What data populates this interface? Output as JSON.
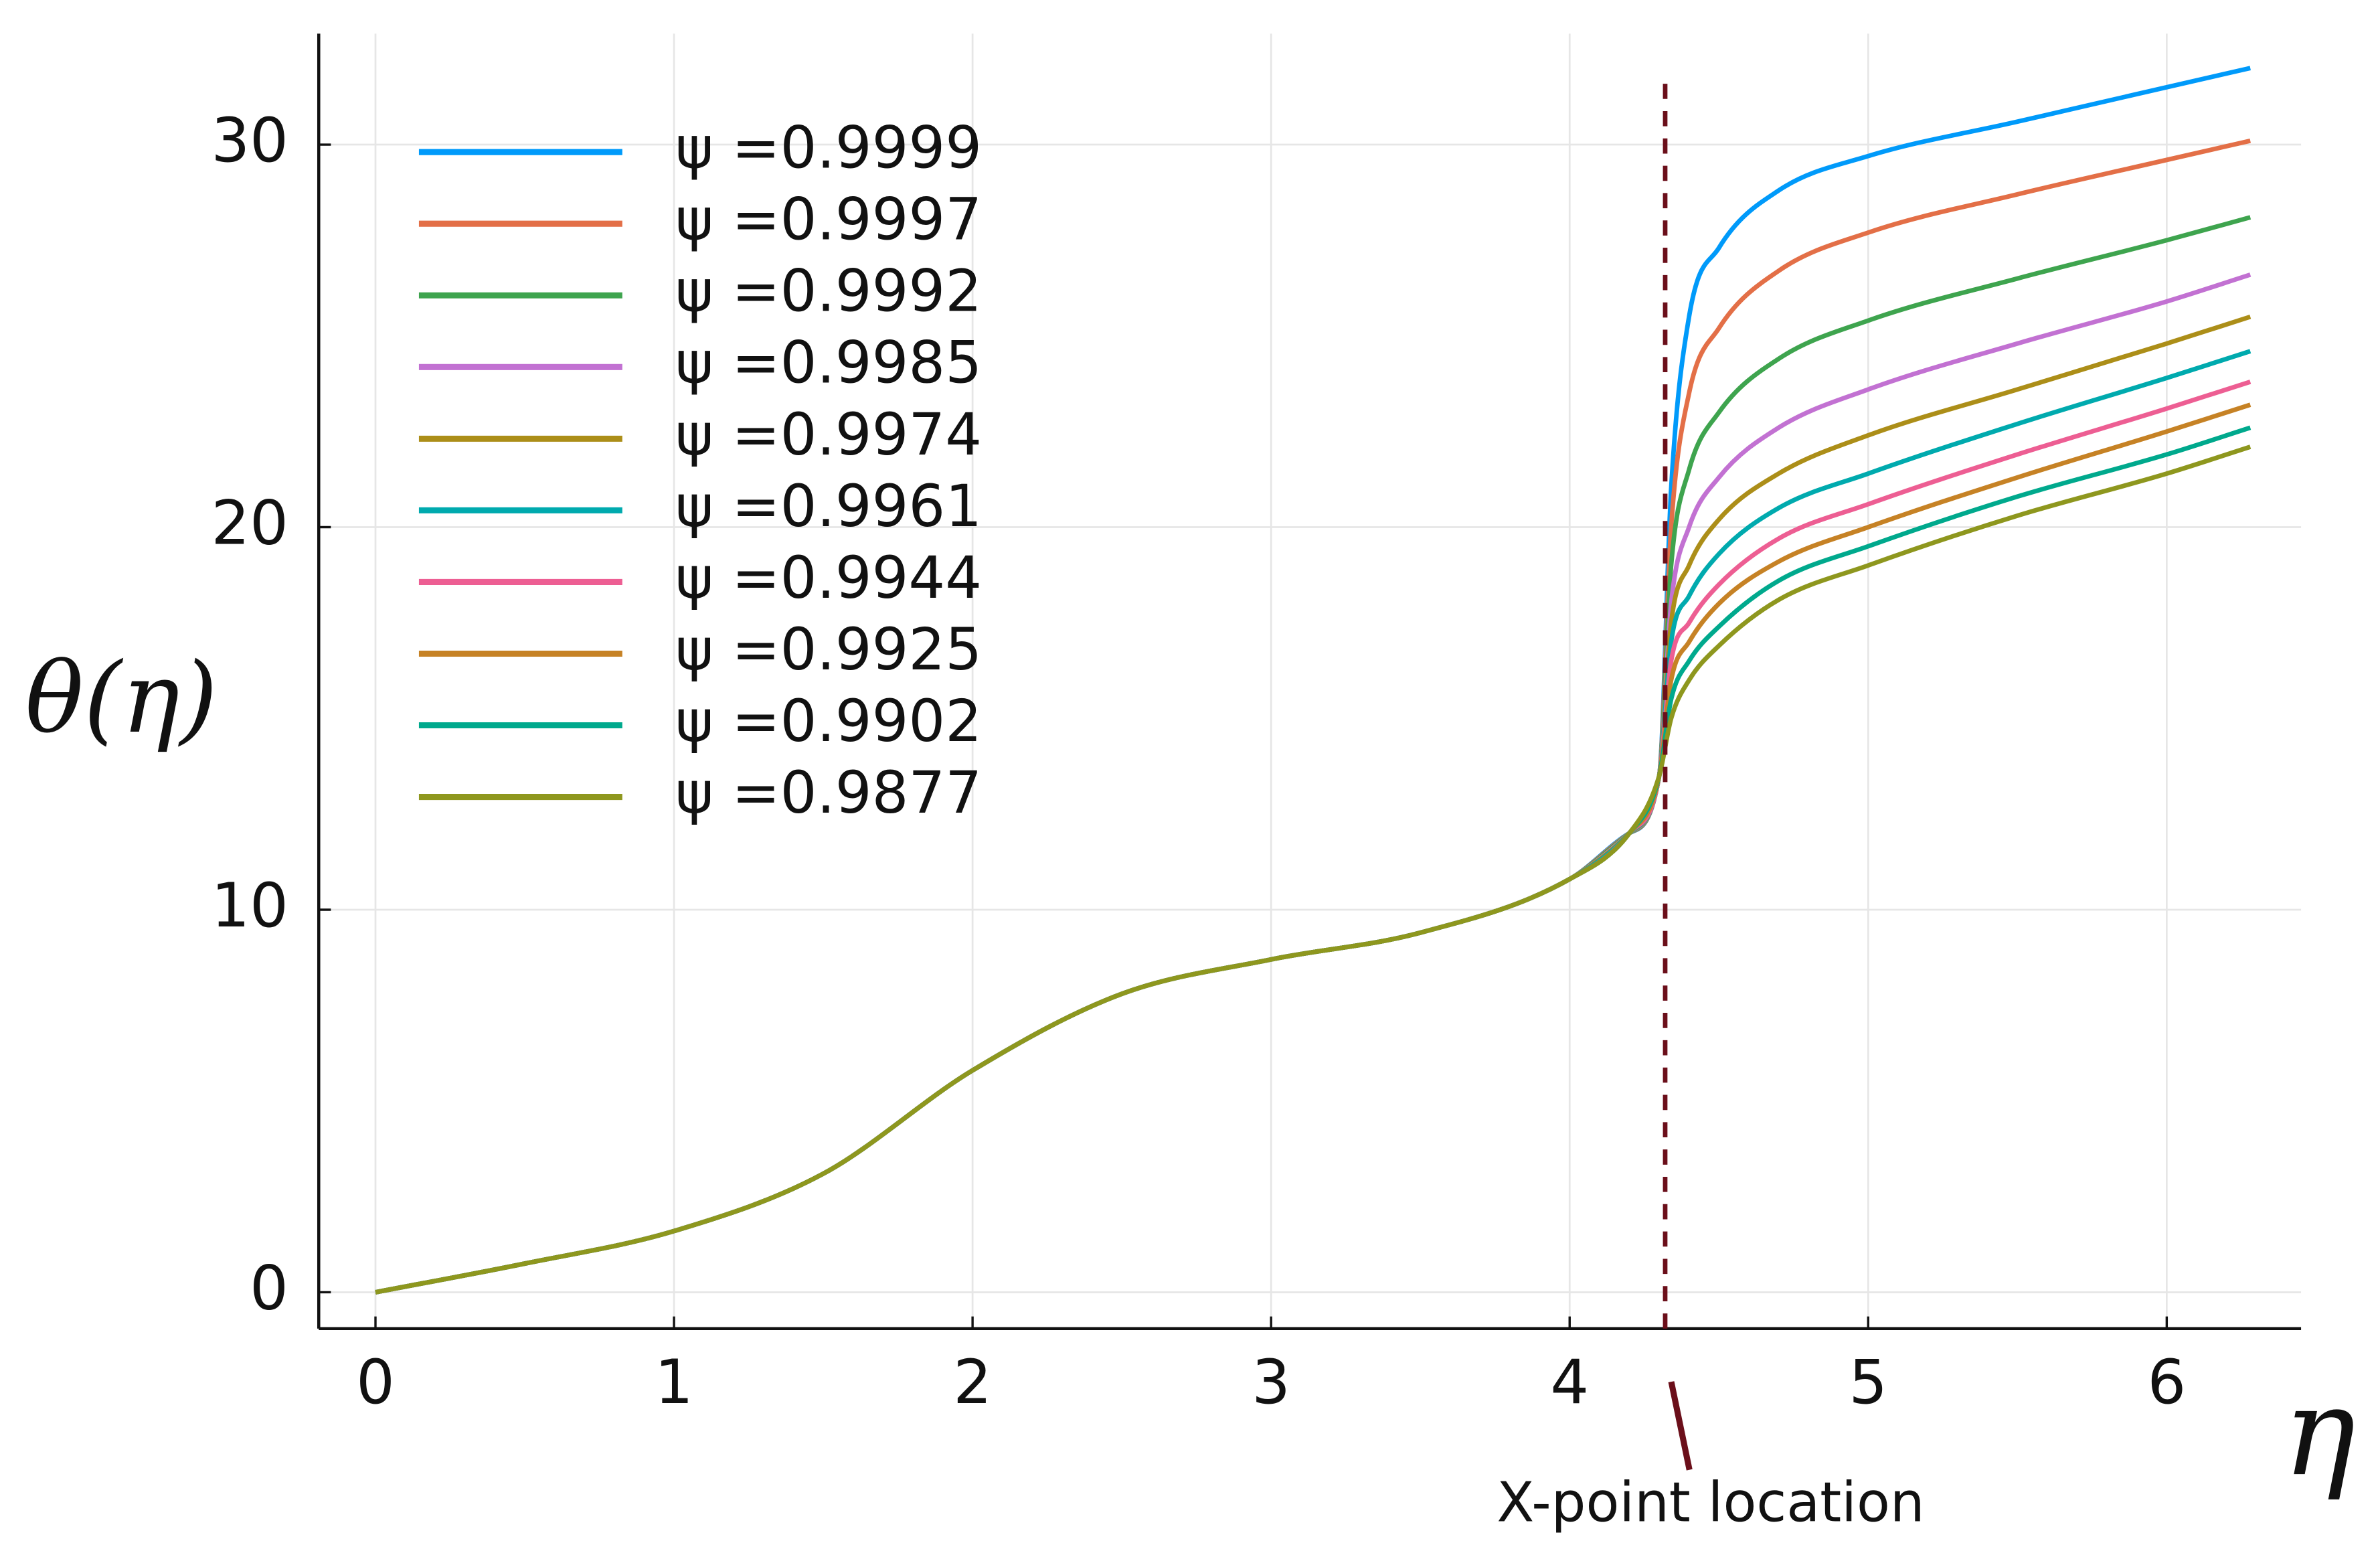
{
  "chart_data": {
    "type": "line",
    "x_label": "η",
    "y_label": "θ(η)",
    "x": [
      0,
      0.5,
      1,
      1.5,
      2,
      2.5,
      3,
      3.5,
      4,
      4.2,
      4.3,
      4.34,
      4.4,
      4.5,
      4.7,
      5,
      5.5,
      6,
      6.28
    ],
    "xlim": [
      -0.19,
      6.45
    ],
    "ylim": [
      -0.95,
      32.9
    ],
    "xticks": [
      0,
      1,
      2,
      3,
      4,
      5,
      6
    ],
    "yticks": [
      0,
      10,
      20,
      30
    ],
    "grid": true,
    "legend": "top-left",
    "series": [
      {
        "name": "ψ =0.9999",
        "color": "#009AFA",
        "values": [
          0,
          0.75,
          1.6,
          3.1,
          5.8,
          7.8,
          8.7,
          9.4,
          10.8,
          12.0,
          13.5,
          21,
          25.5,
          27.3,
          28.8,
          29.7,
          30.6,
          31.5,
          32.0
        ]
      },
      {
        "name": "ψ =0.9997",
        "color": "#E36F47",
        "values": [
          0,
          0.75,
          1.6,
          3.1,
          5.8,
          7.8,
          8.7,
          9.4,
          10.8,
          12.0,
          13.5,
          20,
          23.5,
          25.2,
          26.7,
          27.7,
          28.7,
          29.6,
          30.1
        ]
      },
      {
        "name": "ψ =0.9992",
        "color": "#3EA44E",
        "values": [
          0,
          0.75,
          1.6,
          3.1,
          5.8,
          7.8,
          8.7,
          9.4,
          10.8,
          12.0,
          13.5,
          19,
          21.5,
          23.0,
          24.4,
          25.4,
          26.5,
          27.5,
          28.1
        ]
      },
      {
        "name": "ψ =0.9985",
        "color": "#C271D2",
        "values": [
          0,
          0.75,
          1.6,
          3.1,
          5.8,
          7.8,
          8.7,
          9.4,
          10.8,
          12.0,
          13.5,
          18,
          20,
          21.3,
          22.6,
          23.6,
          24.8,
          25.9,
          26.6
        ]
      },
      {
        "name": "ψ =0.9974",
        "color": "#AC8E18",
        "values": [
          0,
          0.75,
          1.6,
          3.1,
          5.8,
          7.8,
          8.7,
          9.4,
          10.8,
          12.0,
          13.5,
          17.5,
          19,
          20.2,
          21.4,
          22.4,
          23.6,
          24.8,
          25.5
        ]
      },
      {
        "name": "ψ =0.9961",
        "color": "#00AAAE",
        "values": [
          0,
          0.75,
          1.6,
          3.1,
          5.8,
          7.8,
          8.7,
          9.4,
          10.8,
          12.0,
          13.5,
          17,
          18.2,
          19.3,
          20.5,
          21.4,
          22.7,
          23.9,
          24.6
        ]
      },
      {
        "name": "ψ =0.9944",
        "color": "#ED5E93",
        "values": [
          0,
          0.75,
          1.6,
          3.1,
          5.8,
          7.8,
          8.7,
          9.4,
          10.8,
          12.0,
          13.5,
          16.5,
          17.5,
          18.5,
          19.7,
          20.6,
          21.9,
          23.1,
          23.8
        ]
      },
      {
        "name": "ψ =0.9925",
        "color": "#C68225",
        "values": [
          0,
          0.75,
          1.6,
          3.1,
          5.8,
          7.8,
          8.7,
          9.4,
          10.8,
          12.0,
          13.5,
          16,
          17,
          18.0,
          19.1,
          20.0,
          21.3,
          22.5,
          23.2
        ]
      },
      {
        "name": "ψ =0.9902",
        "color": "#00A98D",
        "values": [
          0,
          0.75,
          1.6,
          3.1,
          5.8,
          7.8,
          8.7,
          9.4,
          10.8,
          12.0,
          13.5,
          15.5,
          16.5,
          17.4,
          18.6,
          19.5,
          20.8,
          21.9,
          22.6
        ]
      },
      {
        "name": "ψ =0.9877",
        "color": "#8E971E",
        "values": [
          0,
          0.75,
          1.6,
          3.1,
          5.8,
          7.8,
          8.7,
          9.4,
          10.8,
          12.0,
          13.5,
          15,
          16,
          16.9,
          18.1,
          19.0,
          20.3,
          21.4,
          22.1
        ]
      }
    ],
    "vline": {
      "x": 4.32,
      "color": "#6B0F1A",
      "label": "X-point location"
    }
  }
}
